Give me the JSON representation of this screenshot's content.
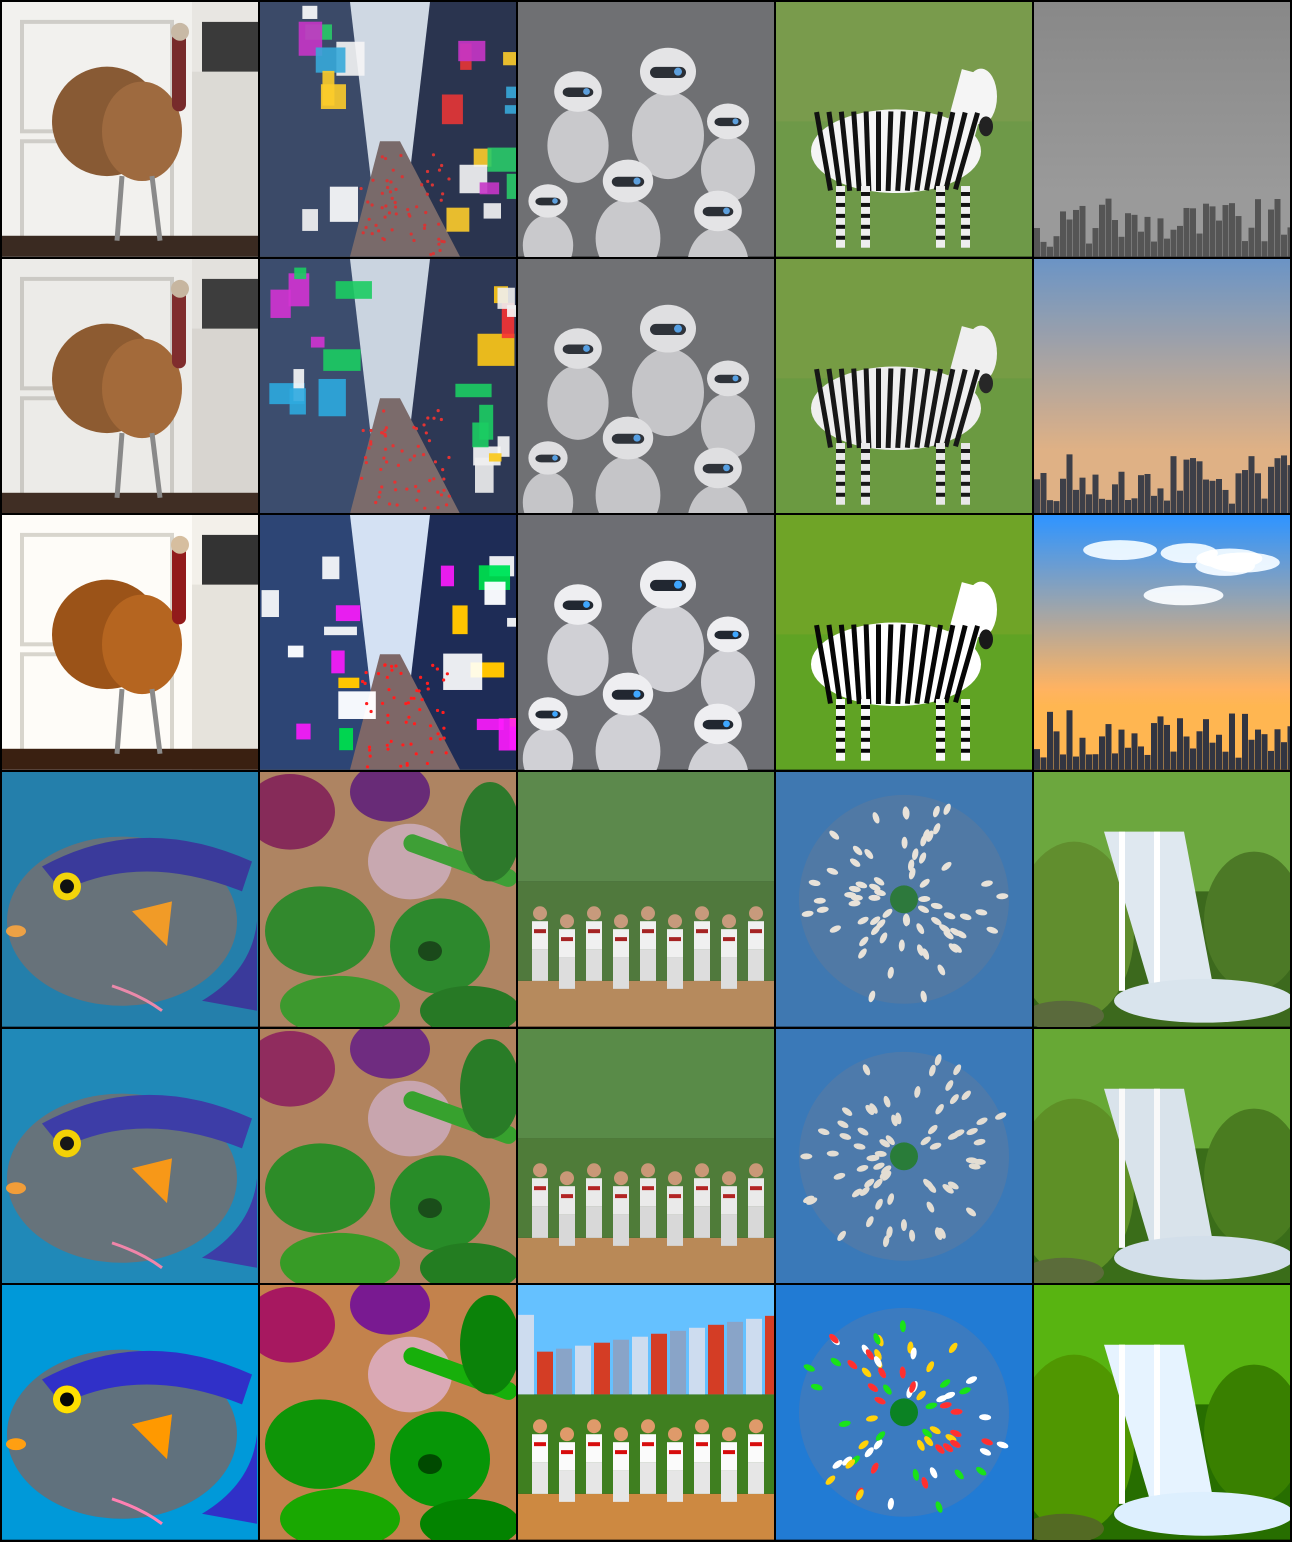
{
  "grid": {
    "rows": 6,
    "columns": 5,
    "groups": [
      {
        "subjects": [
          "turkey-in-kitchen",
          "times-square",
          "robots",
          "zebra",
          "city-skyline"
        ],
        "variants": [
          "row-1",
          "row-2",
          "row-3"
        ]
      },
      {
        "subjects": [
          "fish",
          "vegetables",
          "baseball-team",
          "aerial-city",
          "waterfall"
        ],
        "variants": [
          "row-4",
          "row-5",
          "row-6"
        ]
      }
    ]
  },
  "palette": {
    "turkey": "#8a5a32",
    "kitchen": "#e8e6e2",
    "times_square": "#3a4a6a",
    "robot": "#c9c9cc",
    "zebra_grass": "#6d9a45",
    "skyline_sky": "#7d9fc4",
    "fish_water": "#1f78a8",
    "pepper": "#2f8a2a",
    "onion": "#8a2a5a",
    "baseball_grass": "#4f7a3a",
    "aerial_blue": "#3c78b4",
    "waterfall_moss": "#5f8f2a"
  }
}
